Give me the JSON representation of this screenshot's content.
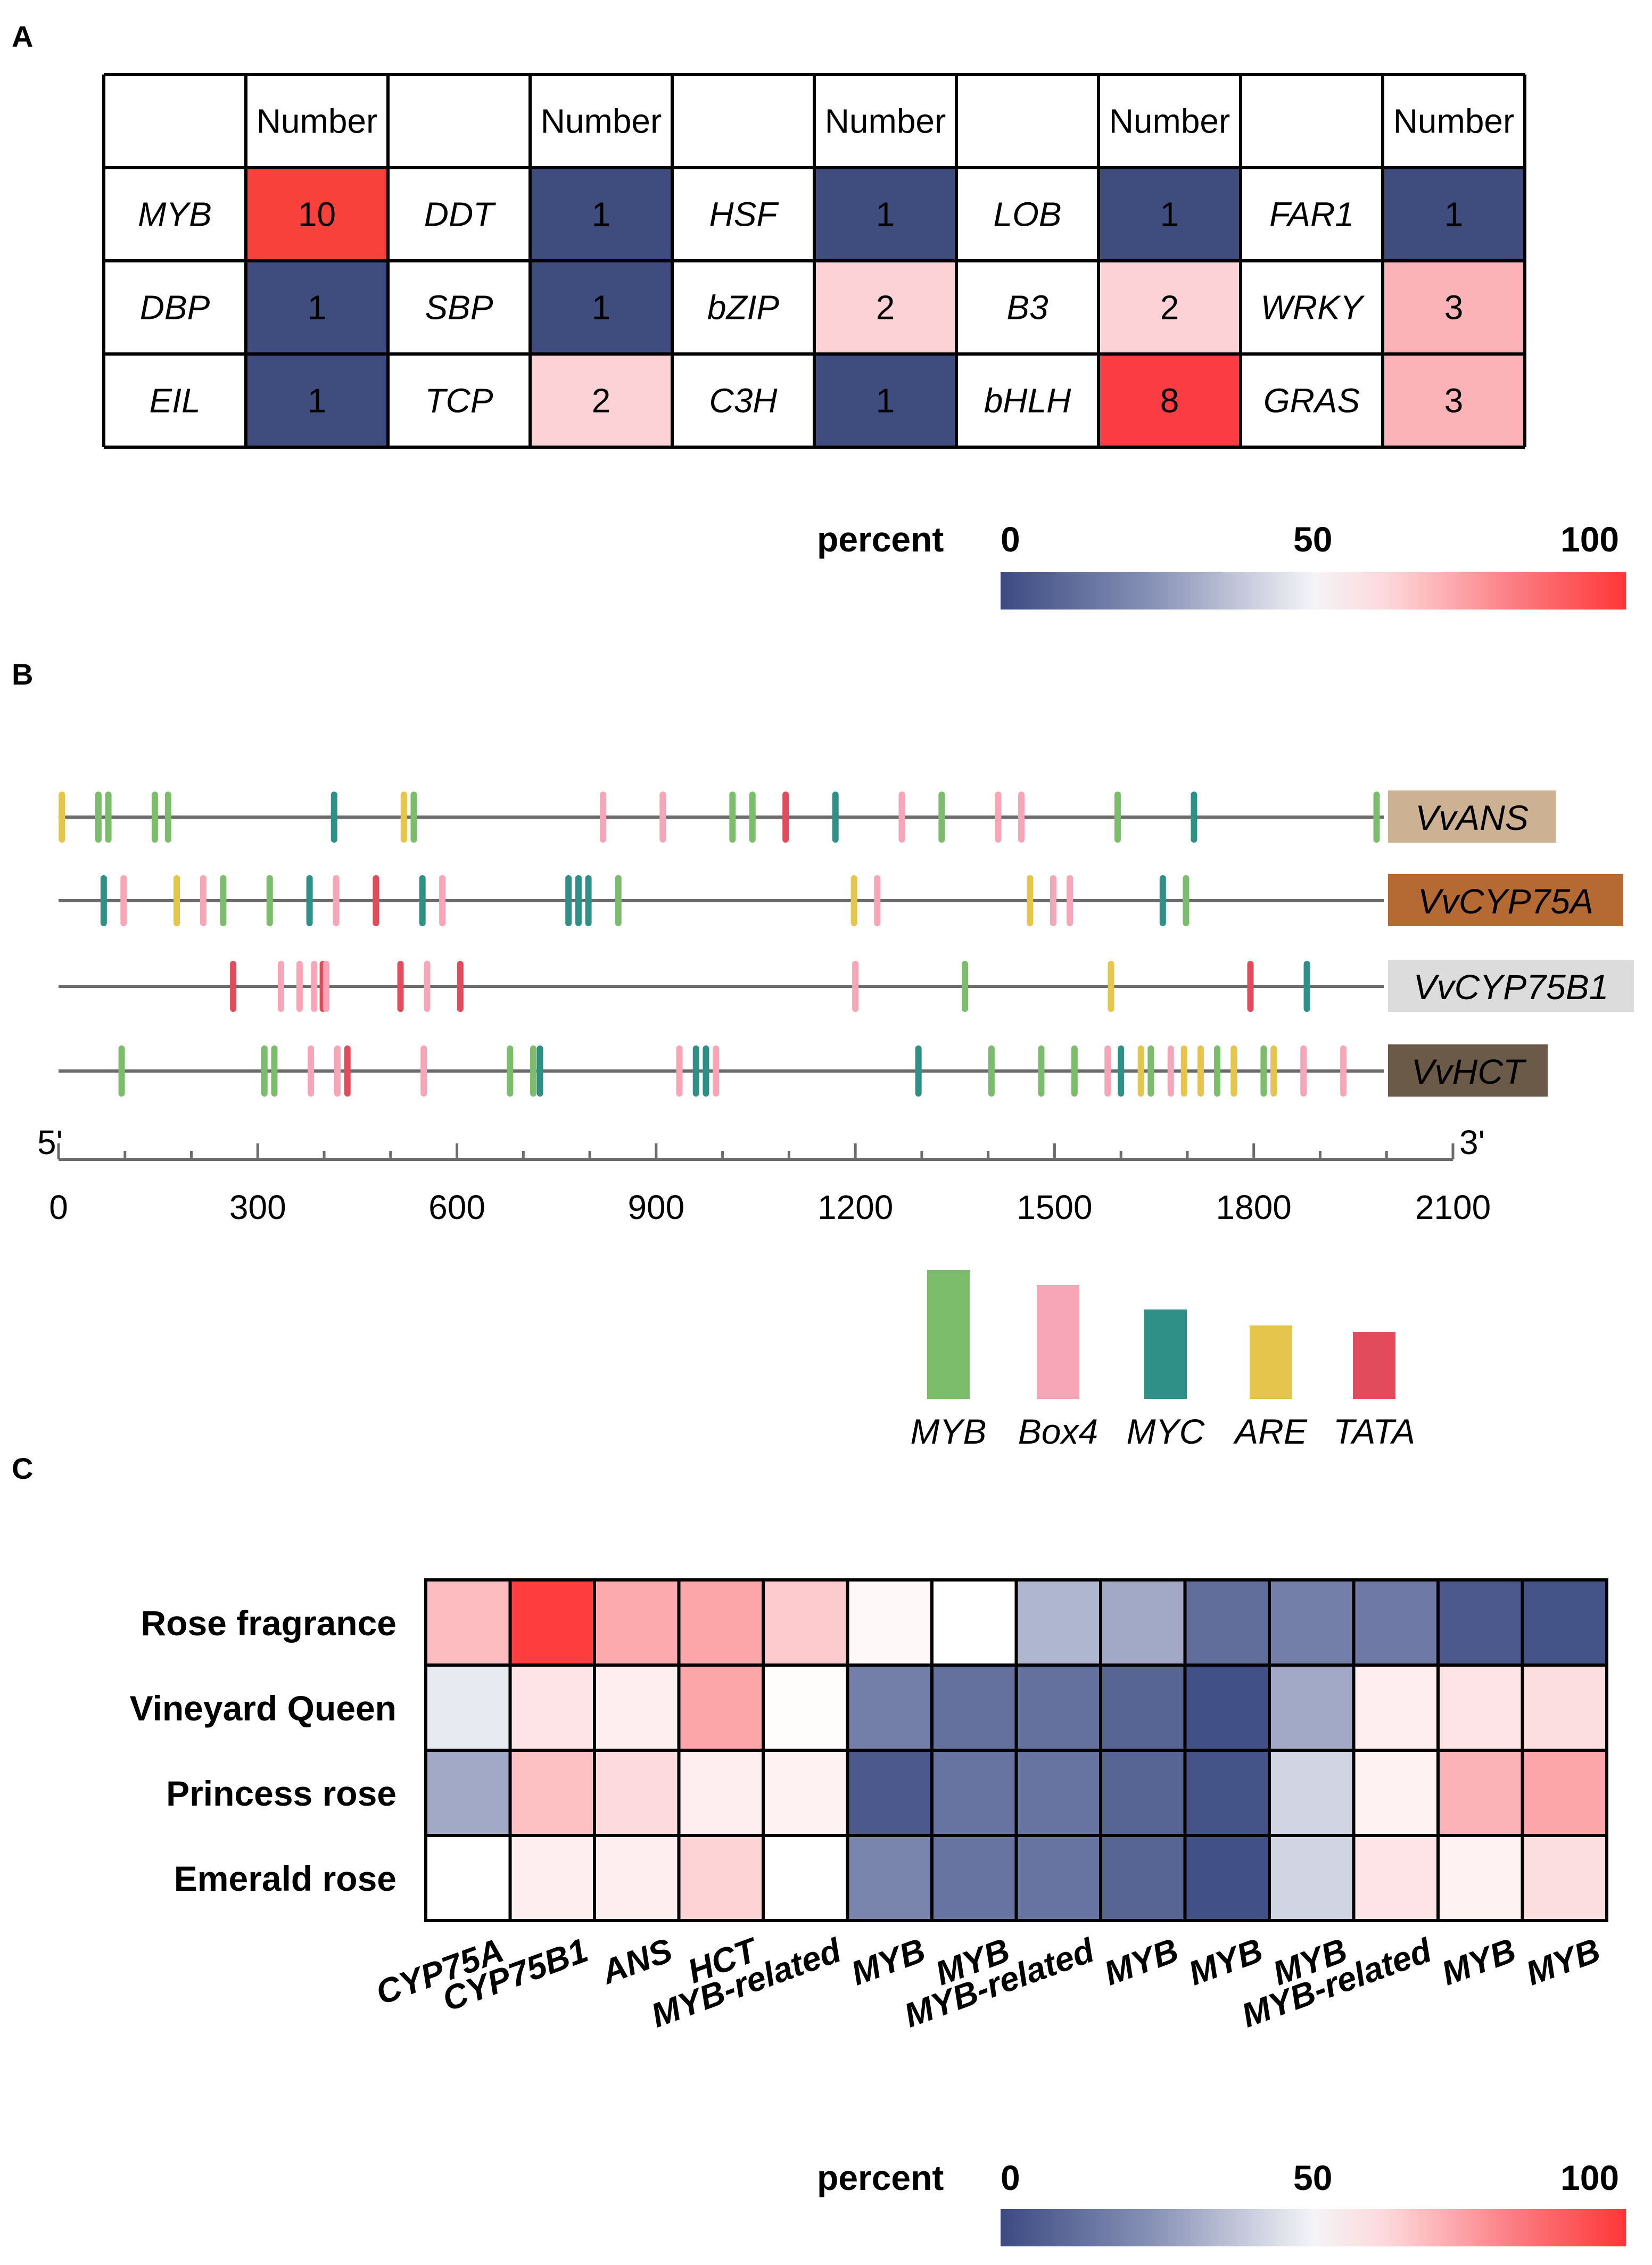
{
  "panel_labels": {
    "a": "A",
    "b": "B",
    "c": "C"
  },
  "chart_data": [
    {
      "type": "table",
      "id": "A",
      "header_value_label": "Number",
      "rows": [
        [
          {
            "tf": "MYB",
            "n": 10
          },
          {
            "tf": "DDT",
            "n": 1
          },
          {
            "tf": "HSF",
            "n": 1
          },
          {
            "tf": "LOB",
            "n": 1
          },
          {
            "tf": "FAR1",
            "n": 1
          }
        ],
        [
          {
            "tf": "DBP",
            "n": 1
          },
          {
            "tf": "SBP",
            "n": 1
          },
          {
            "tf": "bZIP",
            "n": 2
          },
          {
            "tf": "B3",
            "n": 2
          },
          {
            "tf": "WRKY",
            "n": 3
          }
        ],
        [
          {
            "tf": "EIL",
            "n": 1
          },
          {
            "tf": "TCP",
            "n": 2
          },
          {
            "tf": "C3H",
            "n": 1
          },
          {
            "tf": "bHLH",
            "n": 8
          },
          {
            "tf": "GRAS",
            "n": 3
          }
        ]
      ],
      "value_colors": {
        "1": "#3e4c7e",
        "2": "#fcd2d6",
        "3": "#fbb3b8",
        "8": "#fb3c42",
        "10": "#f8413b"
      },
      "colorbar": {
        "title": "percent",
        "ticks": [
          "0",
          "50",
          "100"
        ],
        "colors": [
          "#3b4a82",
          "#f2f2f5",
          "#fe3636"
        ]
      }
    },
    {
      "type": "scatter",
      "id": "B",
      "xlim": [
        0,
        2100
      ],
      "ticks": [
        "0",
        "300",
        "600",
        "900",
        "1200",
        "1500",
        "1800",
        "2100"
      ],
      "end_5": "5'",
      "end_3": "3'",
      "legend": [
        {
          "name": "MYB",
          "color": "#7cbd6c"
        },
        {
          "name": "Box4",
          "color": "#f7a6b7"
        },
        {
          "name": "MYC",
          "color": "#2f9088"
        },
        {
          "name": "ARE",
          "color": "#e5c54b"
        },
        {
          "name": "TATA",
          "color": "#e24b5b"
        }
      ],
      "genes": [
        {
          "name": "VvANS",
          "box_color": "#cdb193",
          "elements": [
            {
              "pos": 5,
              "type": "ARE"
            },
            {
              "pos": 60,
              "type": "MYB"
            },
            {
              "pos": 75,
              "type": "MYB"
            },
            {
              "pos": 145,
              "type": "MYB"
            },
            {
              "pos": 165,
              "type": "MYB"
            },
            {
              "pos": 415,
              "type": "MYC"
            },
            {
              "pos": 520,
              "type": "ARE"
            },
            {
              "pos": 535,
              "type": "MYB"
            },
            {
              "pos": 820,
              "type": "Box4"
            },
            {
              "pos": 910,
              "type": "Box4"
            },
            {
              "pos": 1015,
              "type": "MYB"
            },
            {
              "pos": 1045,
              "type": "MYB"
            },
            {
              "pos": 1095,
              "type": "TATA"
            },
            {
              "pos": 1170,
              "type": "MYC"
            },
            {
              "pos": 1270,
              "type": "Box4"
            },
            {
              "pos": 1330,
              "type": "MYB"
            },
            {
              "pos": 1415,
              "type": "Box4"
            },
            {
              "pos": 1450,
              "type": "Box4"
            },
            {
              "pos": 1595,
              "type": "MYB"
            },
            {
              "pos": 1710,
              "type": "MYC"
            },
            {
              "pos": 1985,
              "type": "MYB"
            }
          ]
        },
        {
          "name": "VvCYP75A",
          "box_color": "#b56a33",
          "elements": [
            {
              "pos": 68,
              "type": "MYC"
            },
            {
              "pos": 98,
              "type": "Box4"
            },
            {
              "pos": 178,
              "type": "ARE"
            },
            {
              "pos": 218,
              "type": "Box4"
            },
            {
              "pos": 248,
              "type": "MYB"
            },
            {
              "pos": 318,
              "type": "MYB"
            },
            {
              "pos": 378,
              "type": "MYC"
            },
            {
              "pos": 418,
              "type": "Box4"
            },
            {
              "pos": 478,
              "type": "TATA"
            },
            {
              "pos": 548,
              "type": "MYC"
            },
            {
              "pos": 578,
              "type": "Box4"
            },
            {
              "pos": 768,
              "type": "MYC"
            },
            {
              "pos": 783,
              "type": "MYC"
            },
            {
              "pos": 798,
              "type": "MYC"
            },
            {
              "pos": 843,
              "type": "MYB"
            },
            {
              "pos": 1198,
              "type": "ARE"
            },
            {
              "pos": 1233,
              "type": "Box4"
            },
            {
              "pos": 1463,
              "type": "ARE"
            },
            {
              "pos": 1498,
              "type": "Box4"
            },
            {
              "pos": 1523,
              "type": "Box4"
            },
            {
              "pos": 1663,
              "type": "MYC"
            },
            {
              "pos": 1698,
              "type": "MYB"
            }
          ]
        },
        {
          "name": "VvCYP75B1",
          "box_color": "#dcdcdc",
          "elements": [
            {
              "pos": 263,
              "type": "TATA"
            },
            {
              "pos": 335,
              "type": "Box4"
            },
            {
              "pos": 363,
              "type": "Box4"
            },
            {
              "pos": 385,
              "type": "Box4"
            },
            {
              "pos": 398,
              "type": "TATA"
            },
            {
              "pos": 403,
              "type": "Box4"
            },
            {
              "pos": 515,
              "type": "TATA"
            },
            {
              "pos": 555,
              "type": "Box4"
            },
            {
              "pos": 605,
              "type": "TATA"
            },
            {
              "pos": 1200,
              "type": "Box4"
            },
            {
              "pos": 1365,
              "type": "MYB"
            },
            {
              "pos": 1585,
              "type": "ARE"
            },
            {
              "pos": 1795,
              "type": "TATA"
            },
            {
              "pos": 1880,
              "type": "MYC"
            }
          ]
        },
        {
          "name": "VvHCT",
          "box_color": "#6b5a48",
          "elements": [
            {
              "pos": 95,
              "type": "MYB"
            },
            {
              "pos": 310,
              "type": "MYB"
            },
            {
              "pos": 325,
              "type": "MYB"
            },
            {
              "pos": 380,
              "type": "Box4"
            },
            {
              "pos": 420,
              "type": "Box4"
            },
            {
              "pos": 435,
              "type": "TATA"
            },
            {
              "pos": 550,
              "type": "Box4"
            },
            {
              "pos": 680,
              "type": "MYB"
            },
            {
              "pos": 715,
              "type": "MYB"
            },
            {
              "pos": 725,
              "type": "MYC"
            },
            {
              "pos": 935,
              "type": "Box4"
            },
            {
              "pos": 960,
              "type": "MYC"
            },
            {
              "pos": 975,
              "type": "MYC"
            },
            {
              "pos": 990,
              "type": "Box4"
            },
            {
              "pos": 1295,
              "type": "MYC"
            },
            {
              "pos": 1405,
              "type": "MYB"
            },
            {
              "pos": 1480,
              "type": "MYB"
            },
            {
              "pos": 1530,
              "type": "MYB"
            },
            {
              "pos": 1580,
              "type": "Box4"
            },
            {
              "pos": 1600,
              "type": "MYC"
            },
            {
              "pos": 1630,
              "type": "ARE"
            },
            {
              "pos": 1645,
              "type": "MYB"
            },
            {
              "pos": 1675,
              "type": "Box4"
            },
            {
              "pos": 1695,
              "type": "ARE"
            },
            {
              "pos": 1720,
              "type": "ARE"
            },
            {
              "pos": 1745,
              "type": "MYB"
            },
            {
              "pos": 1770,
              "type": "ARE"
            },
            {
              "pos": 1815,
              "type": "MYB"
            },
            {
              "pos": 1830,
              "type": "ARE"
            },
            {
              "pos": 1875,
              "type": "Box4"
            },
            {
              "pos": 1935,
              "type": "Box4"
            }
          ]
        }
      ]
    },
    {
      "type": "heatmap",
      "id": "C",
      "rows": [
        "Rose fragrance",
        "Vineyard Queen",
        "Princess rose",
        "Emerald rose"
      ],
      "columns": [
        "CYP75A",
        "CYP75B1",
        "ANS",
        "HCT",
        "MYB-related",
        "MYB",
        "MYB",
        "MYB-related",
        "MYB",
        "MYB",
        "MYB",
        "MYB-related",
        "MYB",
        "MYB"
      ],
      "values": [
        [
          68,
          98,
          72,
          73,
          65,
          52,
          50,
          33,
          30,
          12,
          18,
          16,
          5,
          3
        ],
        [
          45,
          58,
          55,
          73,
          51,
          18,
          13,
          13,
          9,
          2,
          30,
          55,
          58,
          60
        ],
        [
          30,
          67,
          61,
          55,
          54,
          5,
          14,
          14,
          9,
          3,
          40,
          54,
          70,
          73
        ],
        [
          50,
          55,
          55,
          63,
          50,
          20,
          14,
          14,
          9,
          2,
          40,
          58,
          54,
          60
        ]
      ],
      "colorbar": {
        "title": "percent",
        "ticks": [
          "0",
          "50",
          "100"
        ]
      }
    }
  ]
}
